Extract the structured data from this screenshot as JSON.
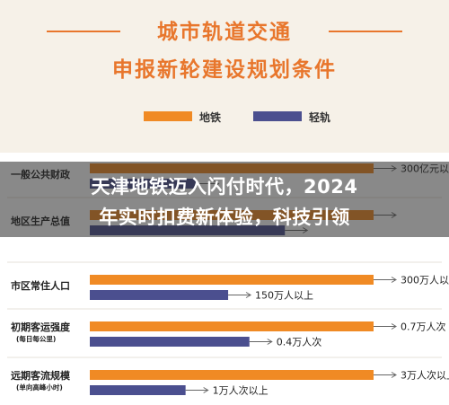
{
  "title": {
    "line1": "城市轨道交通",
    "line2": "申报新轮建设规划条件"
  },
  "colors": {
    "title": "#e8762c",
    "metro": "#f08a24",
    "light_rail": "#4b4f8f",
    "arrow": "#666666"
  },
  "overlay": {
    "line1": "天津地铁迈入闪付时代，2024",
    "line2": "年实时扣费新体验，科技引领"
  },
  "chart_data": {
    "type": "bar",
    "orientation": "horizontal",
    "legend_position": "top",
    "series": [
      {
        "name": "地铁",
        "color": "#f08a24"
      },
      {
        "name": "轻轨",
        "color": "#4b4f8f"
      }
    ],
    "categories": [
      {
        "label": "一般公共财政",
        "sublabel": "",
        "metro": {
          "fill": 0.8,
          "label": "300亿元以上"
        },
        "light_rail": {
          "fill": 0.3,
          "label": ""
        }
      },
      {
        "label": "地区生产总值",
        "sublabel": "",
        "metro": {
          "fill": 0.8,
          "label": ""
        },
        "light_rail": {
          "fill": 0.55,
          "label": ""
        }
      },
      {
        "label": "市区常住人口",
        "sublabel": "",
        "metro": {
          "fill": 0.8,
          "label": "300万人以上"
        },
        "light_rail": {
          "fill": 0.39,
          "label": "150万人以上"
        }
      },
      {
        "label": "初期客运强度",
        "sublabel": "(每日每公里)",
        "metro": {
          "fill": 0.8,
          "label": "0.7万人次"
        },
        "light_rail": {
          "fill": 0.45,
          "label": "0.4万人次"
        }
      },
      {
        "label": "远期客流规模",
        "sublabel": "(单向高峰小时)",
        "metro": {
          "fill": 0.8,
          "label": "3万人次以上"
        },
        "light_rail": {
          "fill": 0.27,
          "label": "1万人次以上"
        }
      }
    ]
  }
}
